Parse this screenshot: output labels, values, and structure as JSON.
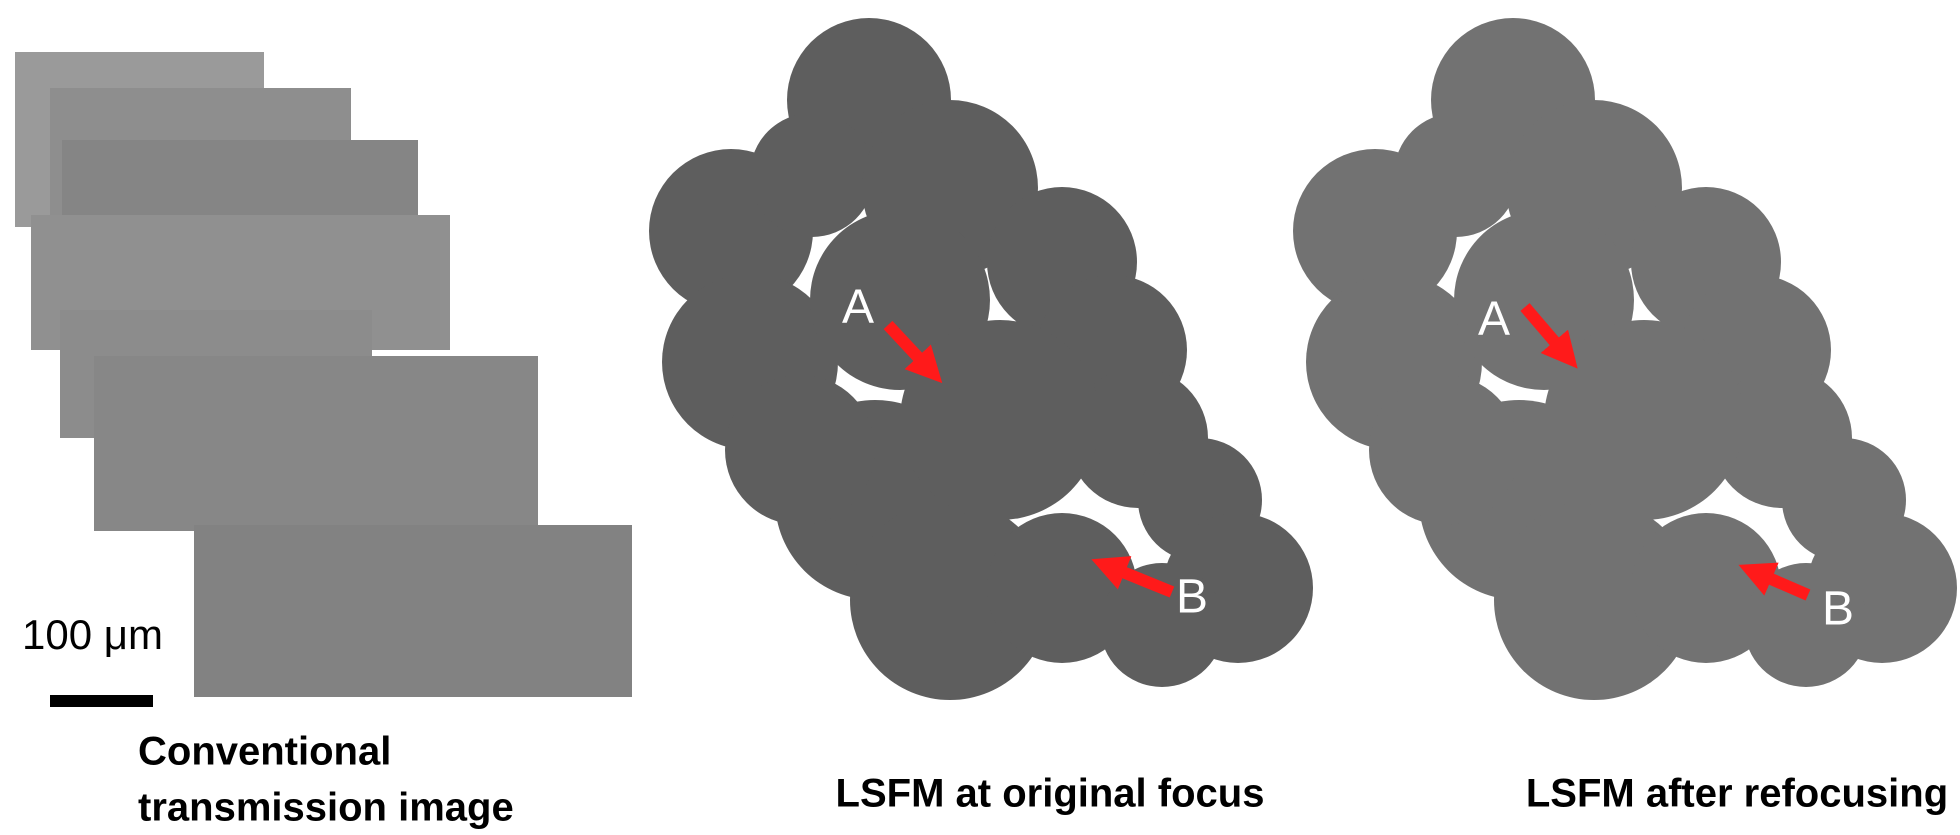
{
  "panels": [
    {
      "title_lines": [
        "Conventional",
        "transmission image"
      ],
      "scale_bar_label": "100 μm"
    },
    {
      "title": "LSFM at original focus",
      "markers": [
        "A",
        "B"
      ]
    },
    {
      "title": "LSFM after refocusing",
      "markers": [
        "A",
        "B"
      ]
    }
  ]
}
